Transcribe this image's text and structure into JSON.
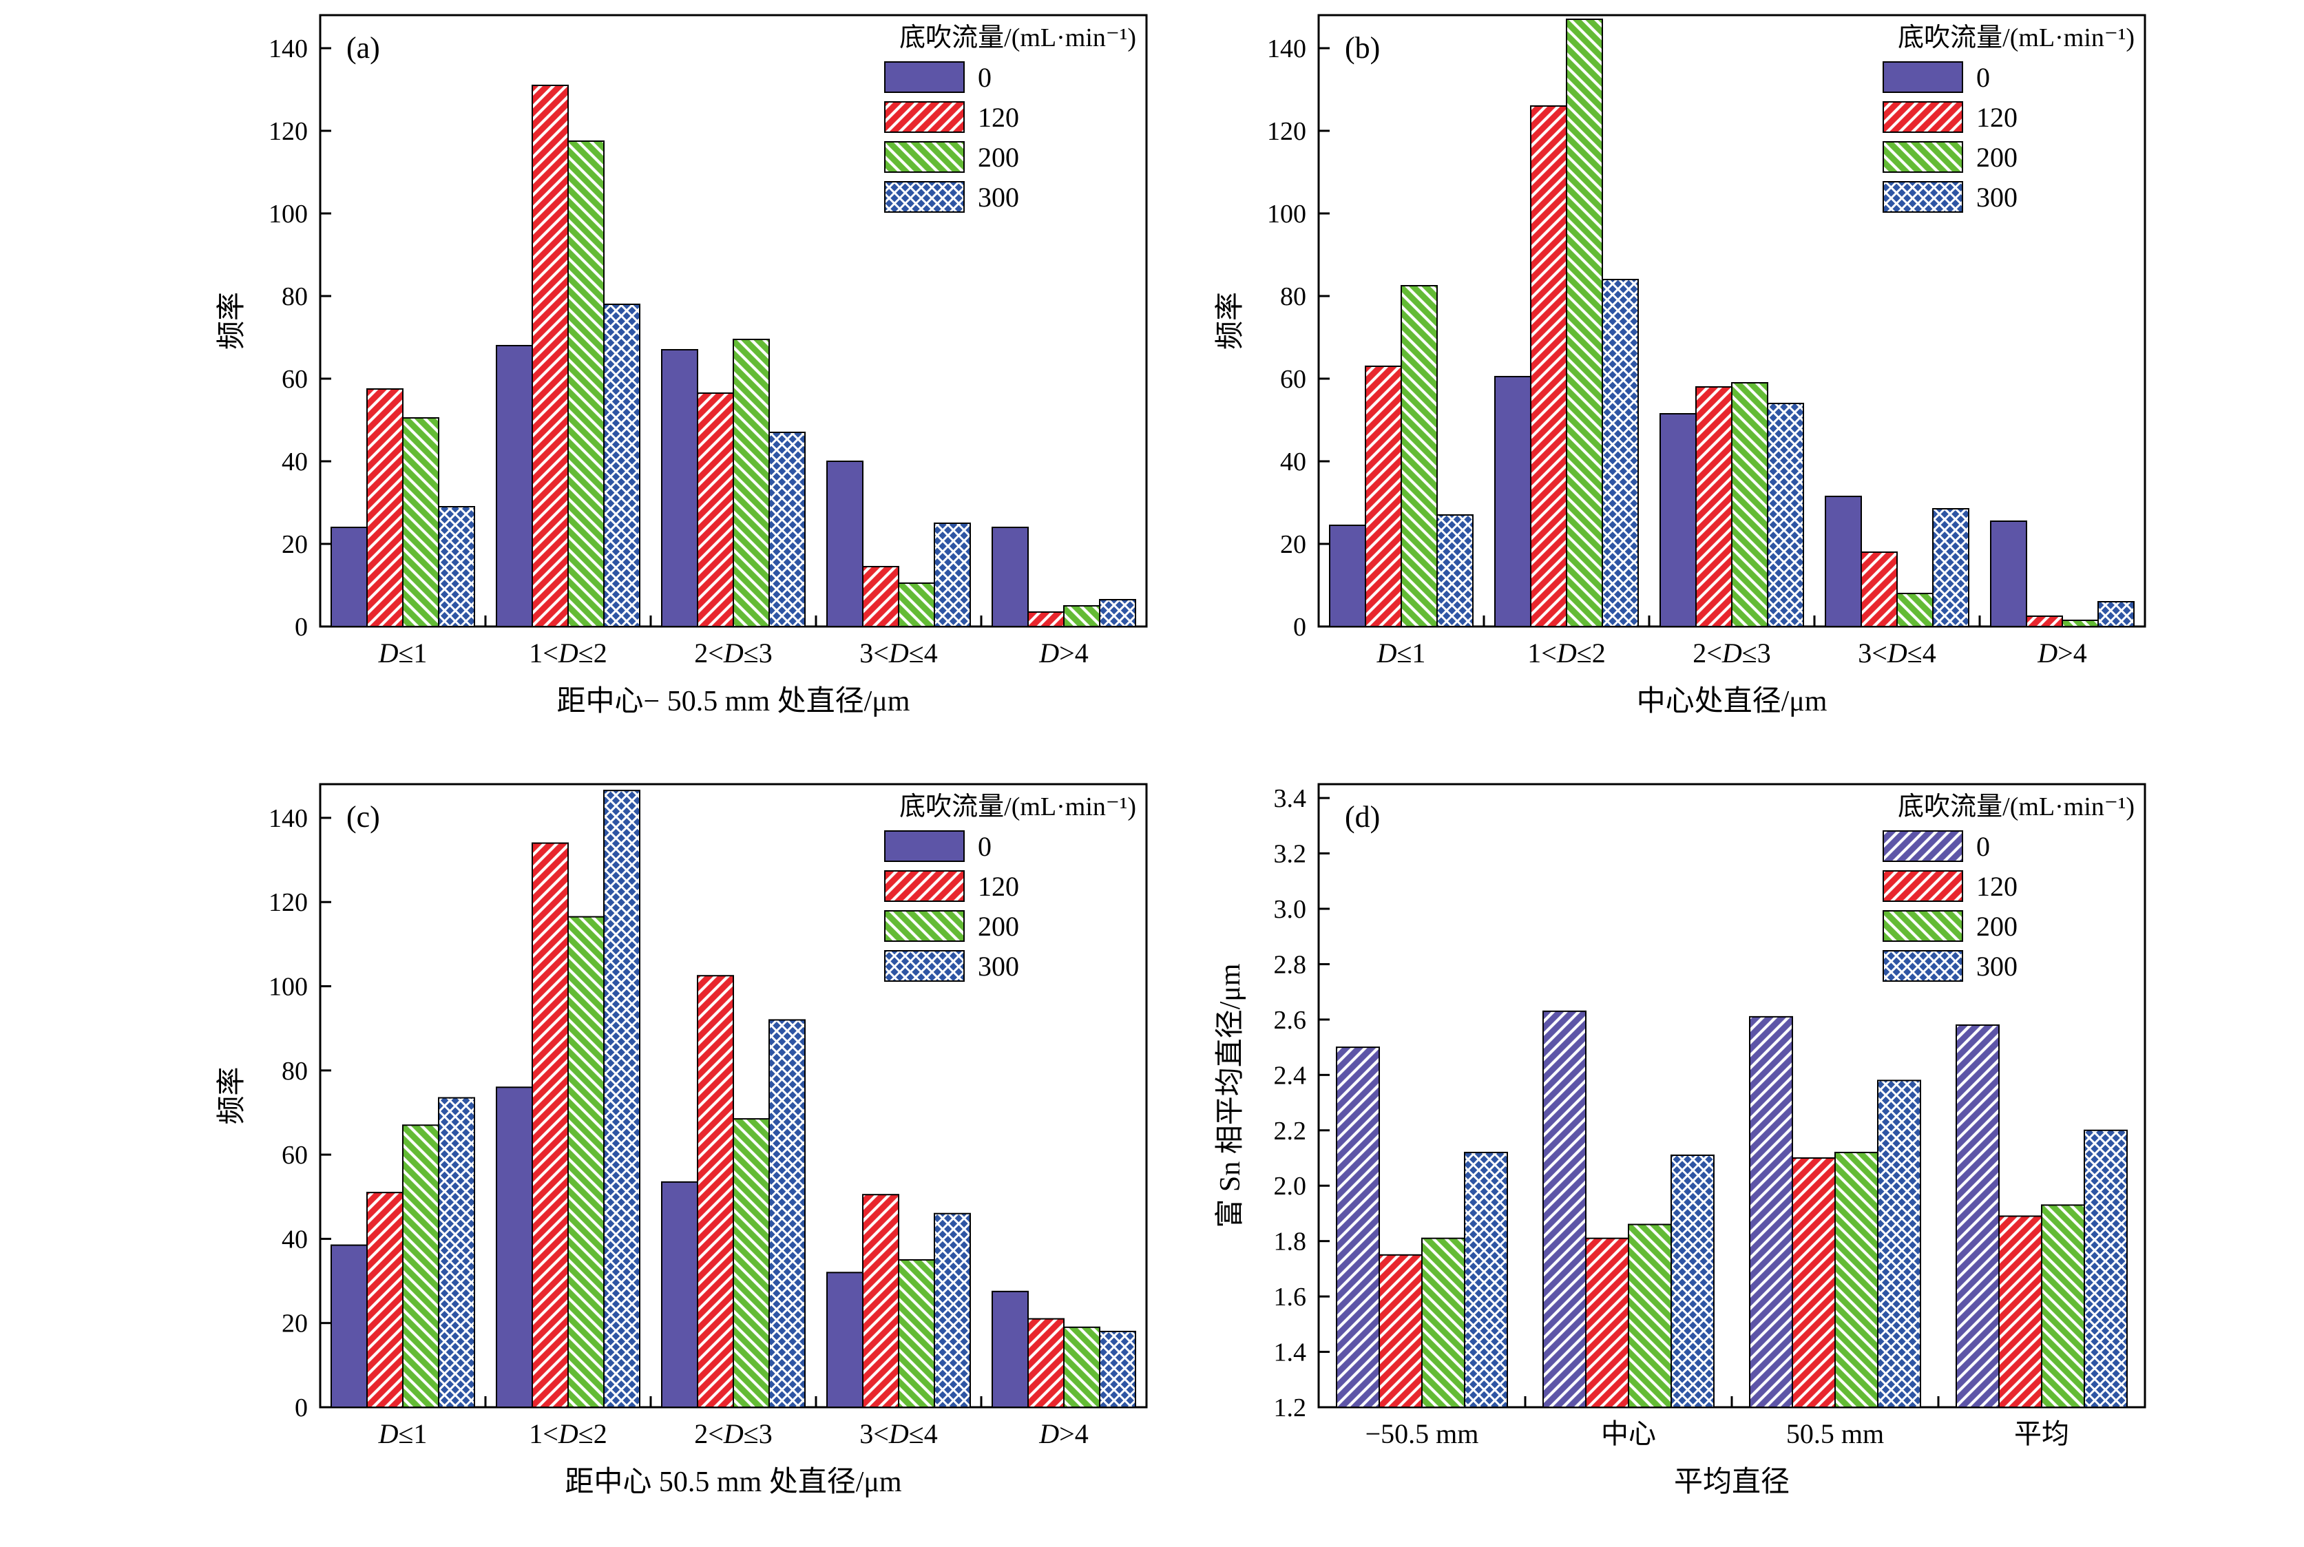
{
  "page": {
    "background": "#ffffff"
  },
  "legend": {
    "title": "底吹流量/(mL·min⁻¹)"
  },
  "series_styles": [
    {
      "label": "0",
      "color": "#5D55A7",
      "hatch": "none",
      "hatch_d": "fwd"
    },
    {
      "label": "120",
      "color": "#E8262D",
      "hatch": "fwd"
    },
    {
      "label": "200",
      "color": "#63BB35",
      "hatch": "back"
    },
    {
      "label": "300",
      "color": "#2E55A3",
      "hatch": "cross"
    }
  ],
  "chart_data": [
    {
      "id": "a",
      "type": "bar",
      "panel_label": "(a)",
      "ylabel": "频率",
      "xlabel": "距中心− 50.5 mm 处直径/μm",
      "ylim": [
        0,
        148
      ],
      "yticks": [
        0,
        20,
        40,
        60,
        80,
        100,
        120,
        140
      ],
      "ytick_decimals": 0,
      "categories": [
        "D≤1",
        "1<D≤2",
        "2<D≤3",
        "3<D≤4",
        "D>4"
      ],
      "series": [
        {
          "name": "0",
          "values": [
            24,
            68,
            67,
            40,
            24
          ]
        },
        {
          "name": "120",
          "values": [
            57.5,
            131,
            56.5,
            14.5,
            3.5
          ]
        },
        {
          "name": "200",
          "values": [
            50.5,
            117.5,
            69.5,
            10.5,
            5
          ]
        },
        {
          "name": "300",
          "values": [
            29,
            78,
            47,
            25,
            6.5
          ]
        }
      ]
    },
    {
      "id": "b",
      "type": "bar",
      "panel_label": "(b)",
      "ylabel": "频率",
      "xlabel": "中心处直径/μm",
      "ylim": [
        0,
        148
      ],
      "yticks": [
        0,
        20,
        40,
        60,
        80,
        100,
        120,
        140
      ],
      "ytick_decimals": 0,
      "categories": [
        "D≤1",
        "1<D≤2",
        "2<D≤3",
        "3<D≤4",
        "D>4"
      ],
      "series": [
        {
          "name": "0",
          "values": [
            24.5,
            60.5,
            51.5,
            31.5,
            25.5
          ]
        },
        {
          "name": "120",
          "values": [
            63,
            126,
            58,
            18,
            2.5
          ]
        },
        {
          "name": "200",
          "values": [
            82.5,
            147,
            59,
            8,
            1.5
          ]
        },
        {
          "name": "300",
          "values": [
            27,
            84,
            54,
            28.5,
            6
          ]
        }
      ]
    },
    {
      "id": "c",
      "type": "bar",
      "panel_label": "(c)",
      "ylabel": "频率",
      "xlabel": "距中心 50.5 mm 处直径/μm",
      "ylim": [
        0,
        148
      ],
      "yticks": [
        0,
        20,
        40,
        60,
        80,
        100,
        120,
        140
      ],
      "ytick_decimals": 0,
      "categories": [
        "D≤1",
        "1<D≤2",
        "2<D≤3",
        "3<D≤4",
        "D>4"
      ],
      "series": [
        {
          "name": "0",
          "values": [
            38.5,
            76,
            53.5,
            32,
            27.5
          ]
        },
        {
          "name": "120",
          "values": [
            51,
            134,
            102.5,
            50.5,
            21
          ]
        },
        {
          "name": "200",
          "values": [
            67,
            116.5,
            68.5,
            35,
            19
          ]
        },
        {
          "name": "300",
          "values": [
            73.5,
            146.5,
            92,
            46,
            18
          ]
        }
      ]
    },
    {
      "id": "d",
      "type": "bar",
      "panel_label": "(d)",
      "ylabel": "富 Sn 相平均直径/μm",
      "xlabel": "平均直径",
      "ylim": [
        1.2,
        3.45
      ],
      "yticks": [
        1.2,
        1.4,
        1.6,
        1.8,
        2.0,
        2.2,
        2.4,
        2.6,
        2.8,
        3.0,
        3.2,
        3.4
      ],
      "ytick_decimals": 1,
      "categories": [
        "−50.5 mm",
        "中心",
        "50.5 mm",
        "平均"
      ],
      "series": [
        {
          "name": "0",
          "values": [
            2.5,
            2.63,
            2.61,
            2.58
          ]
        },
        {
          "name": "120",
          "values": [
            1.75,
            1.81,
            2.1,
            1.89
          ]
        },
        {
          "name": "200",
          "values": [
            1.81,
            1.86,
            2.12,
            1.93
          ]
        },
        {
          "name": "300",
          "values": [
            2.12,
            2.11,
            2.38,
            2.2
          ]
        }
      ]
    }
  ]
}
